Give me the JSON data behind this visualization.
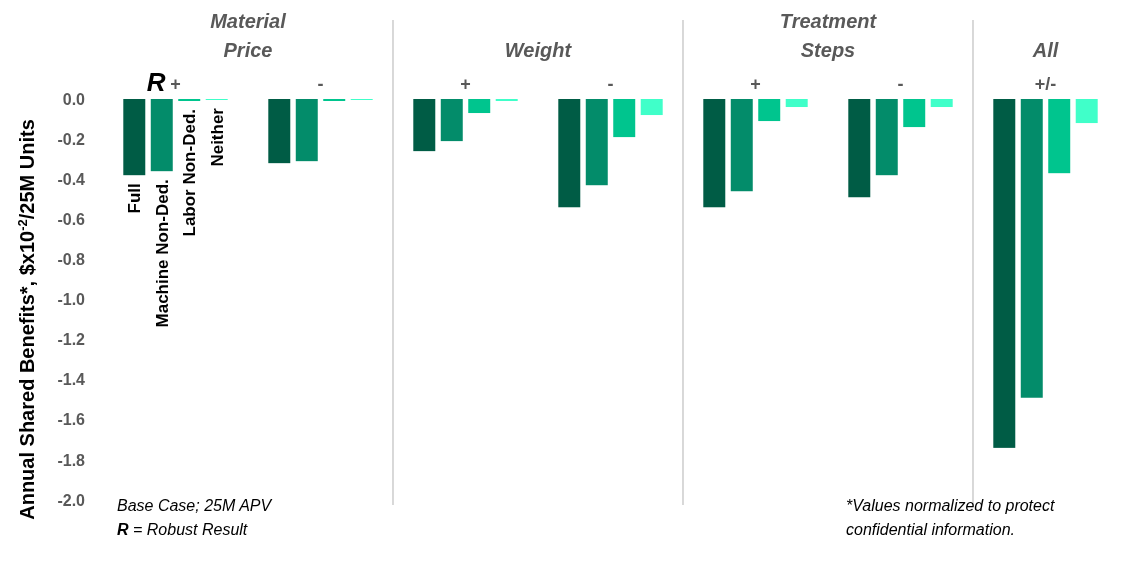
{
  "chart_data": {
    "type": "bar",
    "ylabel": "Annual Shared Benefits*, $x10$^{-2}$/25M Units",
    "categories": [
      "+",
      "-",
      "+",
      "-",
      "+",
      "-",
      "+/-"
    ],
    "series": [
      {
        "name": "Full",
        "color": "#005c45",
        "values": [
          -0.38,
          -0.32,
          -0.26,
          -0.54,
          -0.54,
          -0.49,
          -1.74
        ]
      },
      {
        "name": "Machine Non-Ded.",
        "color": "#038c6a",
        "values": [
          -0.36,
          -0.31,
          -0.21,
          -0.43,
          -0.46,
          -0.38,
          -1.49
        ]
      },
      {
        "name": "Labor Non-Ded.",
        "color": "#00c58e",
        "values": [
          -0.01,
          -0.01,
          -0.07,
          -0.19,
          -0.11,
          -0.14,
          -0.37
        ]
      },
      {
        "name": "Neither",
        "color": "#40ffc9",
        "values": [
          -0.005,
          -0.005,
          -0.01,
          -0.08,
          -0.04,
          -0.04,
          -0.12
        ]
      }
    ],
    "ylim": [
      -2.0,
      0.0
    ],
    "yticks": [
      {
        "value": 0,
        "label": "0.0"
      },
      {
        "value": -0.2,
        "label": "-0.2"
      },
      {
        "value": -0.4,
        "label": "-0.4"
      },
      {
        "value": -0.6,
        "label": "-0.6"
      },
      {
        "value": -0.8,
        "label": "-0.8"
      },
      {
        "value": -1.0,
        "label": "-1.0"
      },
      {
        "value": -1.2,
        "label": "-1.2"
      },
      {
        "value": -1.4,
        "label": "-1.4"
      },
      {
        "value": -1.6,
        "label": "-1.6"
      },
      {
        "value": -1.8,
        "label": "-1.8"
      },
      {
        "value": -2.0,
        "label": "-2.0"
      }
    ],
    "grid": false,
    "legend": false,
    "annotations": [
      "Material Price",
      "Weight",
      "Treatment Steps",
      "All",
      "R",
      "Base Case; 25M APV",
      "R = Robust Result",
      "*Values normalized to protect confidential information."
    ]
  }
}
